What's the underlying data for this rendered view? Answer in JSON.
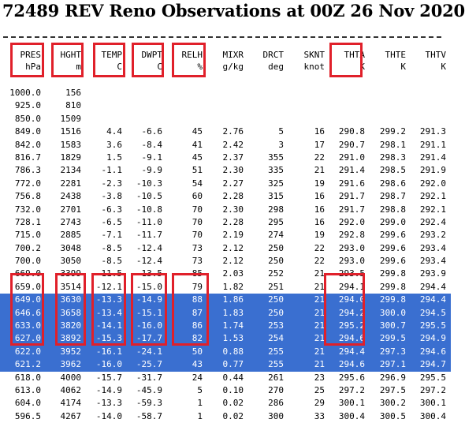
{
  "title": "72489 REV Reno Observations at 00Z 26 Nov 2020",
  "columns": [
    {
      "name": "PRES",
      "unit": "hPa"
    },
    {
      "name": "HGHT",
      "unit": "m"
    },
    {
      "name": "TEMP",
      "unit": "C"
    },
    {
      "name": "DWPT",
      "unit": "C"
    },
    {
      "name": "RELH",
      "unit": "%"
    },
    {
      "name": "MIXR",
      "unit": "g/kg"
    },
    {
      "name": "DRCT",
      "unit": "deg"
    },
    {
      "name": "SKNT",
      "unit": "knot"
    },
    {
      "name": "THTA",
      "unit": "K"
    },
    {
      "name": "THTE",
      "unit": "K"
    },
    {
      "name": "THTV",
      "unit": "K"
    }
  ],
  "highlight_color": "#3a6fd0",
  "box_color": "#e0202a",
  "rows": [
    {
      "cells": [
        "1000.0",
        "156",
        "",
        "",
        "",
        "",
        "",
        "",
        "",
        "",
        ""
      ],
      "selected": false
    },
    {
      "cells": [
        "925.0",
        "810",
        "",
        "",
        "",
        "",
        "",
        "",
        "",
        "",
        ""
      ],
      "selected": false
    },
    {
      "cells": [
        "850.0",
        "1509",
        "",
        "",
        "",
        "",
        "",
        "",
        "",
        "",
        ""
      ],
      "selected": false
    },
    {
      "cells": [
        "849.0",
        "1516",
        "4.4",
        "-6.6",
        "45",
        "2.76",
        "5",
        "16",
        "290.8",
        "299.2",
        "291.3"
      ],
      "selected": false
    },
    {
      "cells": [
        "842.0",
        "1583",
        "3.6",
        "-8.4",
        "41",
        "2.42",
        "3",
        "17",
        "290.7",
        "298.1",
        "291.1"
      ],
      "selected": false
    },
    {
      "cells": [
        "816.7",
        "1829",
        "1.5",
        "-9.1",
        "45",
        "2.37",
        "355",
        "22",
        "291.0",
        "298.3",
        "291.4"
      ],
      "selected": false
    },
    {
      "cells": [
        "786.3",
        "2134",
        "-1.1",
        "-9.9",
        "51",
        "2.30",
        "335",
        "21",
        "291.4",
        "298.5",
        "291.9"
      ],
      "selected": false
    },
    {
      "cells": [
        "772.0",
        "2281",
        "-2.3",
        "-10.3",
        "54",
        "2.27",
        "325",
        "19",
        "291.6",
        "298.6",
        "292.0"
      ],
      "selected": false
    },
    {
      "cells": [
        "756.8",
        "2438",
        "-3.8",
        "-10.5",
        "60",
        "2.28",
        "315",
        "16",
        "291.7",
        "298.7",
        "292.1"
      ],
      "selected": false
    },
    {
      "cells": [
        "732.0",
        "2701",
        "-6.3",
        "-10.8",
        "70",
        "2.30",
        "298",
        "16",
        "291.7",
        "298.8",
        "292.1"
      ],
      "selected": false
    },
    {
      "cells": [
        "728.1",
        "2743",
        "-6.5",
        "-11.0",
        "70",
        "2.28",
        "295",
        "16",
        "292.0",
        "299.0",
        "292.4"
      ],
      "selected": false
    },
    {
      "cells": [
        "715.0",
        "2885",
        "-7.1",
        "-11.7",
        "70",
        "2.19",
        "274",
        "19",
        "292.8",
        "299.6",
        "293.2"
      ],
      "selected": false
    },
    {
      "cells": [
        "700.2",
        "3048",
        "-8.5",
        "-12.4",
        "73",
        "2.12",
        "250",
        "22",
        "293.0",
        "299.6",
        "293.4"
      ],
      "selected": false
    },
    {
      "cells": [
        "700.0",
        "3050",
        "-8.5",
        "-12.4",
        "73",
        "2.12",
        "250",
        "22",
        "293.0",
        "299.6",
        "293.4"
      ],
      "selected": false
    },
    {
      "cells": [
        "669.0",
        "3399",
        "-11.5",
        "-13.5",
        "85",
        "2.03",
        "252",
        "21",
        "293.5",
        "299.8",
        "293.9"
      ],
      "selected": false
    },
    {
      "cells": [
        "659.0",
        "3514",
        "-12.1",
        "-15.0",
        "79",
        "1.82",
        "251",
        "21",
        "294.1",
        "299.8",
        "294.4"
      ],
      "selected": false
    },
    {
      "cells": [
        "649.0",
        "3630",
        "-13.3",
        "-14.9",
        "88",
        "1.86",
        "250",
        "21",
        "294.0",
        "299.8",
        "294.4"
      ],
      "selected": true
    },
    {
      "cells": [
        "646.6",
        "3658",
        "-13.4",
        "-15.1",
        "87",
        "1.83",
        "250",
        "21",
        "294.2",
        "300.0",
        "294.5"
      ],
      "selected": true
    },
    {
      "cells": [
        "633.0",
        "3820",
        "-14.1",
        "-16.0",
        "86",
        "1.74",
        "253",
        "21",
        "295.2",
        "300.7",
        "295.5"
      ],
      "selected": true
    },
    {
      "cells": [
        "627.0",
        "3892",
        "-15.3",
        "-17.7",
        "82",
        "1.53",
        "254",
        "21",
        "294.6",
        "299.5",
        "294.9"
      ],
      "selected": true
    },
    {
      "cells": [
        "622.0",
        "3952",
        "-16.1",
        "-24.1",
        "50",
        "0.88",
        "255",
        "21",
        "294.4",
        "297.3",
        "294.6"
      ],
      "selected": true
    },
    {
      "cells": [
        "621.2",
        "3962",
        "-16.0",
        "-25.7",
        "43",
        "0.77",
        "255",
        "21",
        "294.6",
        "297.1",
        "294.7"
      ],
      "selected": true
    },
    {
      "cells": [
        "618.0",
        "4000",
        "-15.7",
        "-31.7",
        "24",
        "0.44",
        "261",
        "23",
        "295.6",
        "296.9",
        "295.5"
      ],
      "selected": false
    },
    {
      "cells": [
        "613.0",
        "4062",
        "-14.9",
        "-45.9",
        "5",
        "0.10",
        "270",
        "25",
        "297.2",
        "297.5",
        "297.2"
      ],
      "selected": false
    },
    {
      "cells": [
        "604.0",
        "4174",
        "-13.3",
        "-59.3",
        "1",
        "0.02",
        "286",
        "29",
        "300.1",
        "300.2",
        "300.1"
      ],
      "selected": false
    },
    {
      "cells": [
        "596.5",
        "4267",
        "-14.0",
        "-58.7",
        "1",
        "0.02",
        "300",
        "33",
        "300.4",
        "300.5",
        "300.4"
      ],
      "selected": false
    }
  ]
}
